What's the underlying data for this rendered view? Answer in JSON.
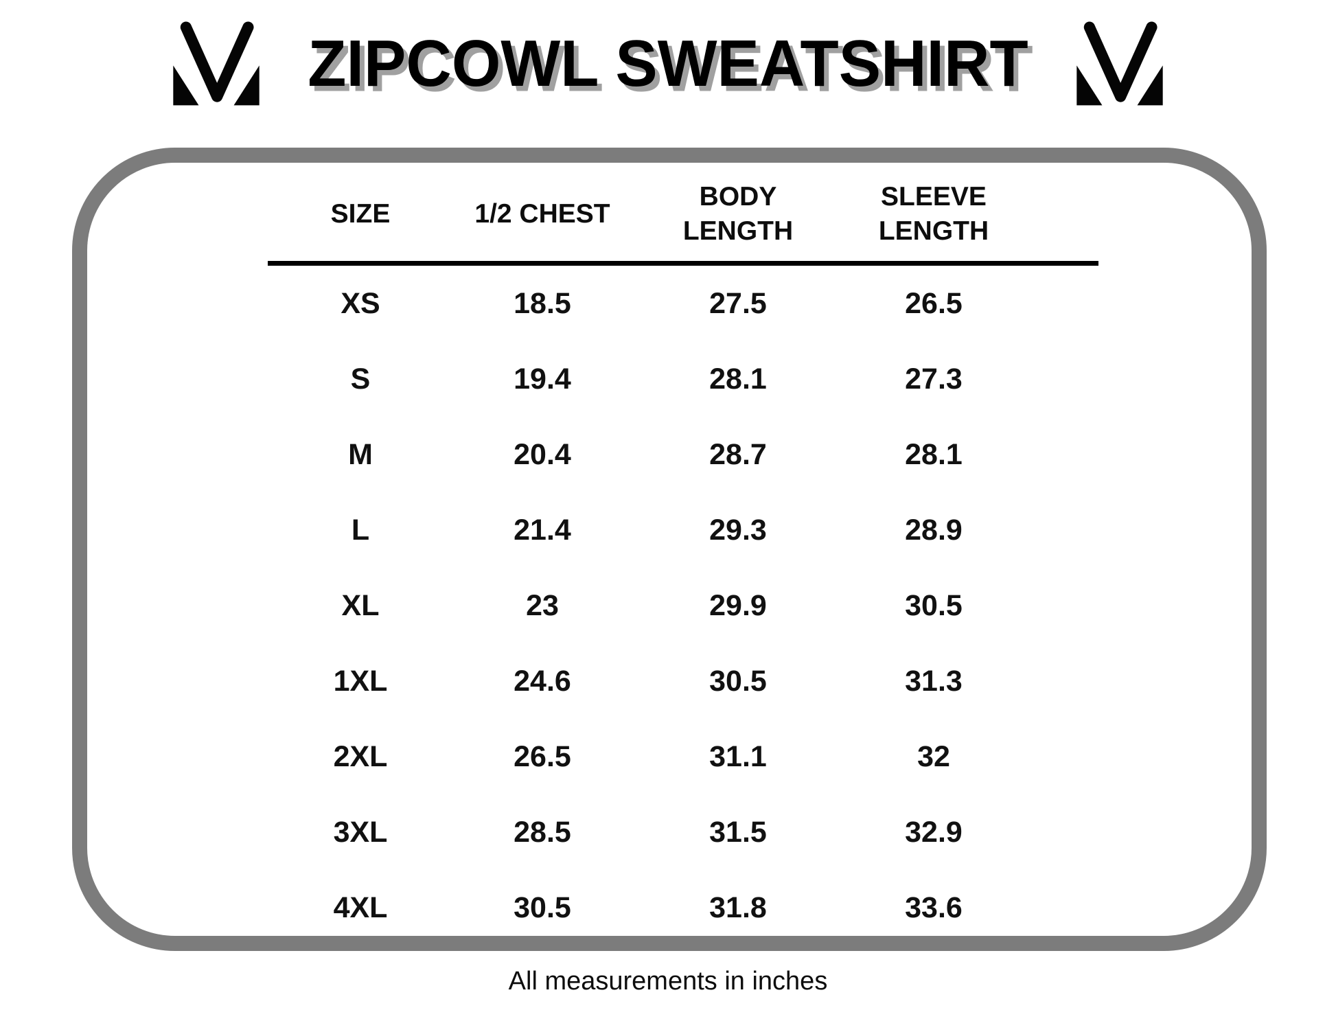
{
  "page": {
    "title": "ZIPCOWL SWEATSHIRT",
    "footer": "All measurements in inches"
  },
  "icons": {
    "left_logo": "brand-m-monogram-logo",
    "right_logo": "brand-m-monogram-logo"
  },
  "colors": {
    "background": "#ffffff",
    "text": "#000000",
    "title_shadow": "#a0a0a0",
    "box_border": "#7c7c7c",
    "divider": "#000000"
  },
  "table": {
    "headers": [
      {
        "line1": "SIZE",
        "line2": ""
      },
      {
        "line1": "1/2 CHEST",
        "line2": ""
      },
      {
        "line1": "BODY",
        "line2": "LENGTH"
      },
      {
        "line1": "SLEEVE",
        "line2": "LENGTH"
      }
    ]
  },
  "chart_data": {
    "type": "table",
    "title": "ZIPCOWL SWEATSHIRT",
    "columns": [
      "SIZE",
      "1/2 CHEST",
      "BODY LENGTH",
      "SLEEVE LENGTH"
    ],
    "rows": [
      [
        "XS",
        "18.5",
        "27.5",
        "26.5"
      ],
      [
        "S",
        "19.4",
        "28.1",
        "27.3"
      ],
      [
        "M",
        "20.4",
        "28.7",
        "28.1"
      ],
      [
        "L",
        "21.4",
        "29.3",
        "28.9"
      ],
      [
        "XL",
        "23",
        "29.9",
        "30.5"
      ],
      [
        "1XL",
        "24.6",
        "30.5",
        "31.3"
      ],
      [
        "2XL",
        "26.5",
        "31.1",
        "32"
      ],
      [
        "3XL",
        "28.5",
        "31.5",
        "32.9"
      ],
      [
        "4XL",
        "30.5",
        "31.8",
        "33.6"
      ]
    ],
    "units": "inches",
    "note": "All measurements in inches"
  }
}
